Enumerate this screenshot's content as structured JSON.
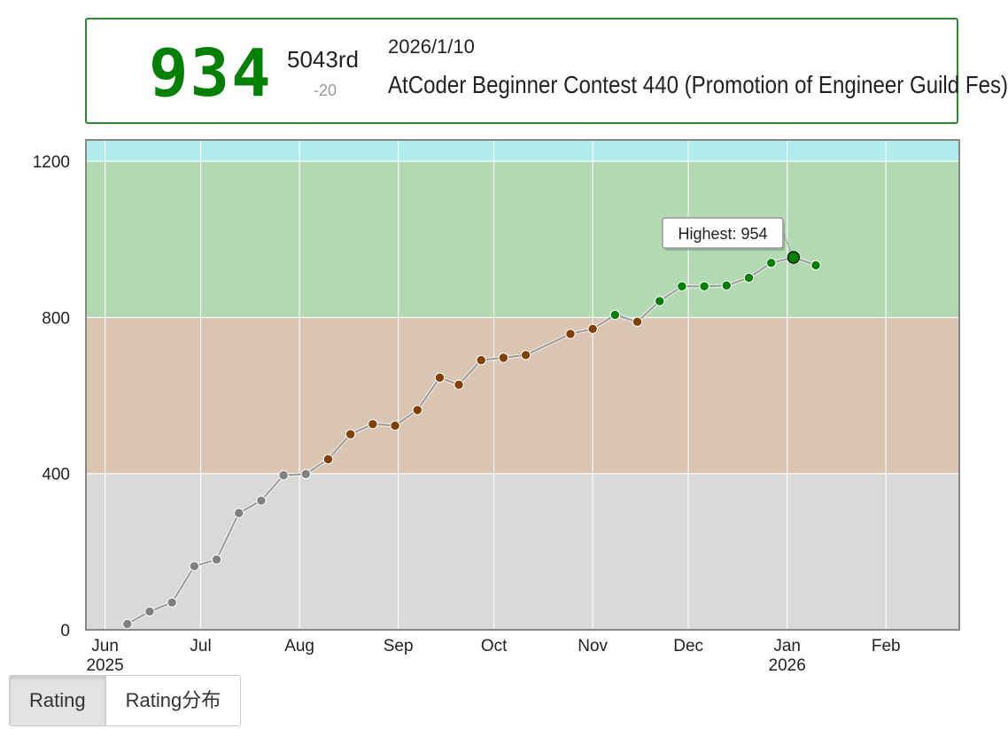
{
  "status": {
    "rating": "934",
    "rank": "5043rd",
    "diff": "-20",
    "date": "2026/1/10",
    "contest": "AtCoder Beginner Contest 440 (Promotion of Engineer Guild Fes)",
    "rating_color": "#008000"
  },
  "tabs": [
    {
      "label": "Rating",
      "active": true
    },
    {
      "label": "Rating分布",
      "active": false
    }
  ],
  "chart_data": {
    "type": "line",
    "title": "",
    "ylim": [
      0,
      1200
    ],
    "yticks": [
      0,
      400,
      800,
      1200
    ],
    "ytick_labels": [
      "0",
      "400",
      "800",
      "1200"
    ],
    "ymax_visible": 1255,
    "xlim": [
      "2025-05-26",
      "2026-02-24"
    ],
    "xticks": [
      {
        "date": "2025-06-01",
        "label": "Jun",
        "sub": "2025"
      },
      {
        "date": "2025-07-01",
        "label": "Jul",
        "sub": ""
      },
      {
        "date": "2025-08-01",
        "label": "Aug",
        "sub": ""
      },
      {
        "date": "2025-09-01",
        "label": "Sep",
        "sub": ""
      },
      {
        "date": "2025-10-01",
        "label": "Oct",
        "sub": ""
      },
      {
        "date": "2025-11-01",
        "label": "Nov",
        "sub": ""
      },
      {
        "date": "2025-12-01",
        "label": "Dec",
        "sub": ""
      },
      {
        "date": "2026-01-01",
        "label": "Jan",
        "sub": "2026"
      },
      {
        "date": "2026-02-01",
        "label": "Feb",
        "sub": ""
      }
    ],
    "bands": [
      {
        "from": 0,
        "to": 400,
        "color": "#d9d9d9"
      },
      {
        "from": 400,
        "to": 800,
        "color": "#d9c5b2"
      },
      {
        "from": 800,
        "to": 1200,
        "color": "#b2d9b2"
      },
      {
        "from": 1200,
        "to": 1600,
        "color": "#b2ecec"
      }
    ],
    "series": [
      {
        "name": "Rating",
        "points": [
          {
            "date": "2025-06-08",
            "value": 15
          },
          {
            "date": "2025-06-15",
            "value": 47
          },
          {
            "date": "2025-06-22",
            "value": 70
          },
          {
            "date": "2025-06-29",
            "value": 163
          },
          {
            "date": "2025-07-06",
            "value": 180
          },
          {
            "date": "2025-07-13",
            "value": 299
          },
          {
            "date": "2025-07-20",
            "value": 331
          },
          {
            "date": "2025-07-27",
            "value": 396
          },
          {
            "date": "2025-08-03",
            "value": 399
          },
          {
            "date": "2025-08-10",
            "value": 437
          },
          {
            "date": "2025-08-17",
            "value": 501
          },
          {
            "date": "2025-08-24",
            "value": 527
          },
          {
            "date": "2025-08-31",
            "value": 523
          },
          {
            "date": "2025-09-07",
            "value": 563
          },
          {
            "date": "2025-09-14",
            "value": 646
          },
          {
            "date": "2025-09-20",
            "value": 628
          },
          {
            "date": "2025-09-27",
            "value": 691
          },
          {
            "date": "2025-10-04",
            "value": 697
          },
          {
            "date": "2025-10-11",
            "value": 704
          },
          {
            "date": "2025-10-25",
            "value": 758
          },
          {
            "date": "2025-11-01",
            "value": 771
          },
          {
            "date": "2025-11-08",
            "value": 807
          },
          {
            "date": "2025-11-15",
            "value": 789
          },
          {
            "date": "2025-11-22",
            "value": 842
          },
          {
            "date": "2025-11-29",
            "value": 880
          },
          {
            "date": "2025-12-06",
            "value": 880
          },
          {
            "date": "2025-12-13",
            "value": 882
          },
          {
            "date": "2025-12-20",
            "value": 902
          },
          {
            "date": "2025-12-27",
            "value": 940
          },
          {
            "date": "2026-01-03",
            "value": 954
          },
          {
            "date": "2026-01-10",
            "value": 934
          }
        ]
      }
    ],
    "highest": {
      "label": "Highest: 954",
      "value": 954,
      "date": "2026-01-03"
    },
    "point_colors": [
      {
        "from": 0,
        "to": 400,
        "color": "#808080"
      },
      {
        "from": 400,
        "to": 800,
        "color": "#804000"
      },
      {
        "from": 800,
        "to": 1200,
        "color": "#008000"
      }
    ]
  }
}
